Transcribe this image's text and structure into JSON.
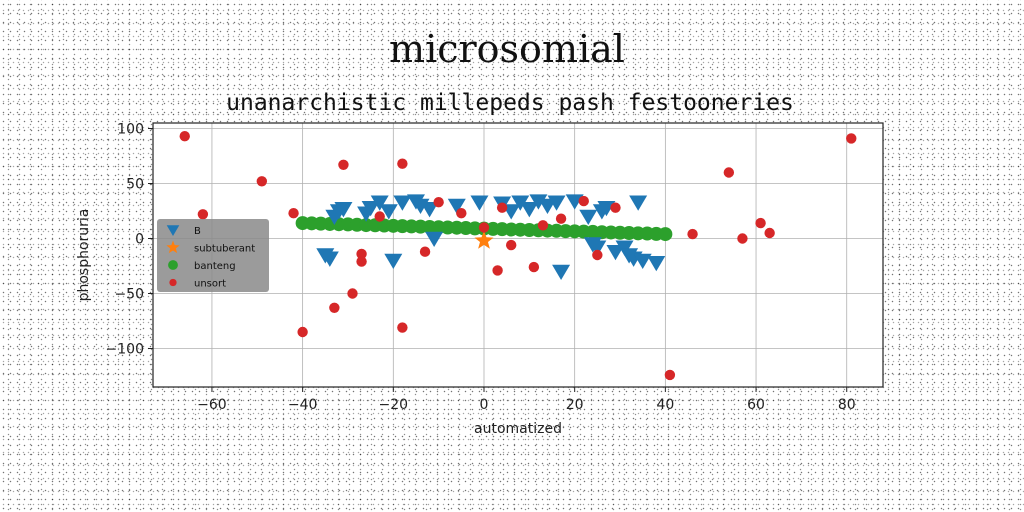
{
  "chart_data": {
    "type": "scatter",
    "title": "microsomial",
    "subtitle": "unanarchistic millepeds pash festooneries",
    "xlabel": "automatized",
    "ylabel": "phosphoruria",
    "xlim": [
      -73,
      88
    ],
    "ylim": [
      -135,
      105
    ],
    "xticks": [
      -60,
      -40,
      -20,
      0,
      20,
      40,
      60,
      80
    ],
    "yticks": [
      -100,
      -50,
      0,
      50,
      100
    ],
    "grid": true,
    "legend_position": "center-left",
    "series": [
      {
        "name": "B",
        "marker": "triangle-down",
        "color": "#1f77b4",
        "x": [
          -35,
          -34,
          -33,
          -32,
          -31,
          -26,
          -25,
          -23,
          -21,
          -20,
          -18,
          -15,
          -14,
          -12,
          -11,
          -6,
          -1,
          4,
          6,
          8,
          10,
          12,
          14,
          16,
          17,
          20,
          23,
          24,
          25,
          26,
          27,
          29,
          31,
          32,
          33,
          34,
          35,
          38
        ],
        "y": [
          -15,
          -18,
          20,
          25,
          27,
          23,
          28,
          33,
          25,
          -20,
          33,
          34,
          30,
          27,
          0,
          30,
          33,
          32,
          25,
          33,
          27,
          34,
          30,
          33,
          -30,
          34,
          20,
          -5,
          -8,
          25,
          28,
          -12,
          -8,
          -15,
          -18,
          33,
          -20,
          -22
        ]
      },
      {
        "name": "subtuberant",
        "marker": "star",
        "color": "#ff7f0e",
        "x": [
          0
        ],
        "y": [
          -2
        ]
      },
      {
        "name": "banteng",
        "marker": "circle",
        "color": "#2ca02c",
        "x": [
          -40,
          -38,
          -36,
          -34,
          -32,
          -30,
          -28,
          -26,
          -24,
          -22,
          -20,
          -18,
          -16,
          -14,
          -12,
          -10,
          -8,
          -6,
          -4,
          -2,
          0,
          2,
          4,
          6,
          8,
          10,
          12,
          14,
          16,
          18,
          20,
          22,
          24,
          26,
          28,
          30,
          32,
          34,
          36,
          38,
          40
        ],
        "y": [
          14,
          13.8,
          13.5,
          13.2,
          13,
          12.8,
          12.5,
          12.2,
          12,
          11.8,
          11.5,
          11.2,
          11,
          10.8,
          10.5,
          10.2,
          10,
          9.8,
          9.5,
          9.2,
          9,
          8.7,
          8.5,
          8.2,
          8,
          7.7,
          7.5,
          7.2,
          7,
          6.7,
          6.5,
          6.2,
          6,
          5.7,
          5.5,
          5.2,
          5,
          4.7,
          4.5,
          4.2,
          4
        ]
      },
      {
        "name": "unsort",
        "marker": "circle",
        "color": "#d62728",
        "x": [
          -66,
          -62,
          -49,
          -42,
          -40,
          -33,
          -31,
          -29,
          -27,
          -27,
          -23,
          -18,
          -18,
          -13,
          -10,
          -5,
          0,
          3,
          4,
          6,
          11,
          13,
          17,
          22,
          25,
          29,
          41,
          46,
          54,
          57,
          61,
          63,
          81
        ],
        "y": [
          93,
          22,
          52,
          23,
          -85,
          -63,
          67,
          -50,
          -14,
          -21,
          20,
          -81,
          68,
          -12,
          33,
          23,
          10,
          -29,
          28,
          -6,
          -26,
          12,
          18,
          34,
          -15,
          28,
          -124,
          4,
          60,
          0,
          14,
          5,
          91
        ]
      }
    ]
  }
}
